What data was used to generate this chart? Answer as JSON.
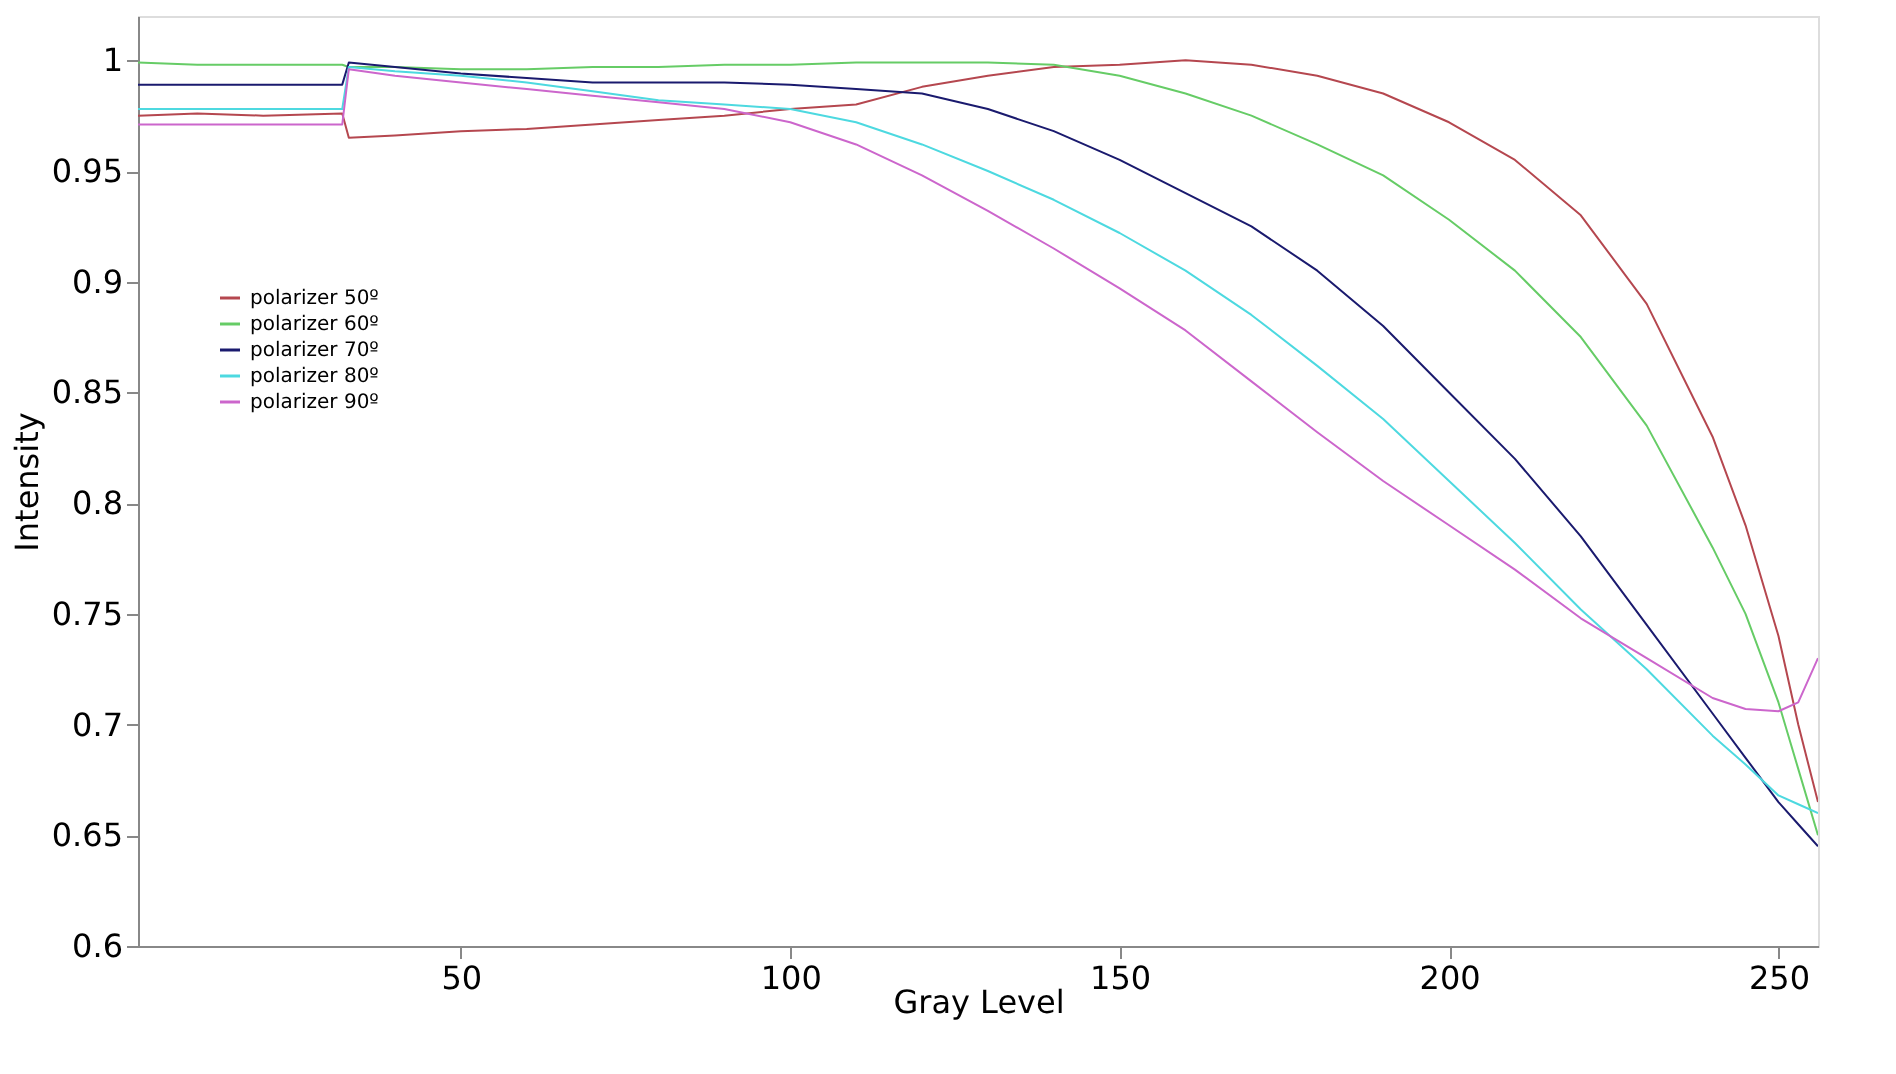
{
  "chart_data": {
    "type": "line",
    "xlabel": "Gray Level",
    "ylabel": "Intensity",
    "xlim": [
      1,
      256
    ],
    "ylim": [
      0.6,
      1.02
    ],
    "xticks": [
      50,
      100,
      150,
      200,
      250
    ],
    "yticks": [
      0.6,
      0.65,
      0.7,
      0.75,
      0.8,
      0.85,
      0.9,
      0.95,
      1
    ],
    "grid": false,
    "legend": "top left",
    "line_style": "solid",
    "marker": "none",
    "x": [
      1,
      10,
      20,
      32,
      33,
      40,
      50,
      60,
      70,
      80,
      90,
      100,
      110,
      120,
      130,
      140,
      150,
      160,
      170,
      180,
      190,
      200,
      210,
      220,
      230,
      240,
      245,
      250,
      253,
      256
    ],
    "series": [
      {
        "name": "polarizer 50º",
        "color": "#b5474f",
        "values": [
          0.975,
          0.976,
          0.975,
          0.976,
          0.965,
          0.966,
          0.968,
          0.969,
          0.971,
          0.973,
          0.975,
          0.978,
          0.98,
          0.988,
          0.993,
          0.997,
          0.998,
          1.0,
          0.998,
          0.993,
          0.985,
          0.972,
          0.955,
          0.93,
          0.89,
          0.83,
          0.79,
          0.74,
          0.7,
          0.665
        ]
      },
      {
        "name": "polarizer 60º",
        "color": "#66cc66",
        "values": [
          0.999,
          0.998,
          0.998,
          0.998,
          0.997,
          0.997,
          0.996,
          0.996,
          0.997,
          0.997,
          0.998,
          0.998,
          0.999,
          0.999,
          0.999,
          0.998,
          0.993,
          0.985,
          0.975,
          0.962,
          0.948,
          0.928,
          0.905,
          0.875,
          0.835,
          0.78,
          0.75,
          0.71,
          0.68,
          0.65
        ]
      },
      {
        "name": "polarizer 70º",
        "color": "#1a1a6e",
        "values": [
          0.989,
          0.989,
          0.989,
          0.989,
          0.999,
          0.997,
          0.994,
          0.992,
          0.99,
          0.99,
          0.99,
          0.989,
          0.987,
          0.985,
          0.978,
          0.968,
          0.955,
          0.94,
          0.925,
          0.905,
          0.88,
          0.85,
          0.82,
          0.785,
          0.745,
          0.705,
          0.685,
          0.665,
          0.655,
          0.645
        ]
      },
      {
        "name": "polarizer 80º",
        "color": "#4dd9e0",
        "values": [
          0.978,
          0.978,
          0.978,
          0.978,
          0.997,
          0.995,
          0.993,
          0.99,
          0.986,
          0.982,
          0.98,
          0.978,
          0.972,
          0.962,
          0.95,
          0.937,
          0.922,
          0.905,
          0.885,
          0.862,
          0.838,
          0.81,
          0.782,
          0.752,
          0.725,
          0.695,
          0.682,
          0.668,
          0.664,
          0.66
        ]
      },
      {
        "name": "polarizer 90º",
        "color": "#cc66cc",
        "values": [
          0.971,
          0.971,
          0.971,
          0.971,
          0.996,
          0.993,
          0.99,
          0.987,
          0.984,
          0.981,
          0.978,
          0.972,
          0.962,
          0.948,
          0.932,
          0.915,
          0.897,
          0.878,
          0.855,
          0.832,
          0.81,
          0.79,
          0.77,
          0.748,
          0.73,
          0.712,
          0.707,
          0.706,
          0.71,
          0.73
        ]
      }
    ]
  }
}
